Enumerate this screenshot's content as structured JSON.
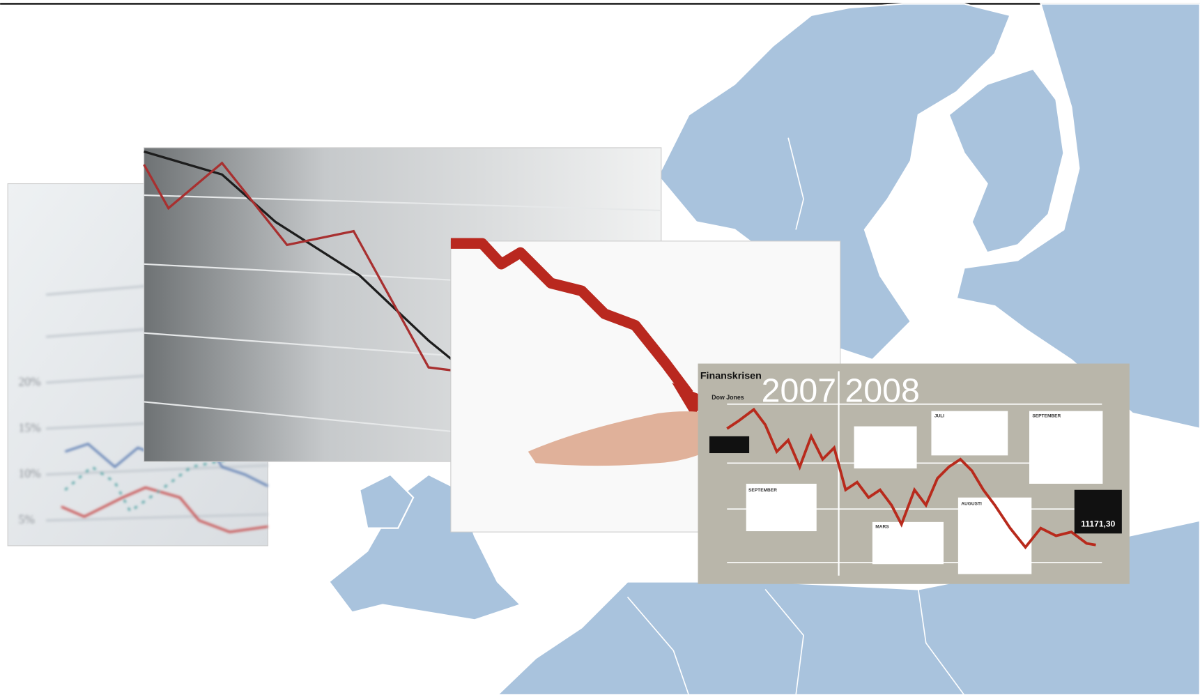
{
  "left_photo": {
    "axis_labels": [
      "5%",
      "10%",
      "15%",
      "20%"
    ]
  },
  "infographic": {
    "title": "Finanskrisen",
    "years": [
      "2007",
      "2008"
    ],
    "subtitle": "Dow Jones",
    "headings": [
      "SEPTEMBER",
      "JULI",
      "SEPTEMBER",
      "MARS",
      "AUGUSTI"
    ],
    "end_value": "11171,30"
  }
}
